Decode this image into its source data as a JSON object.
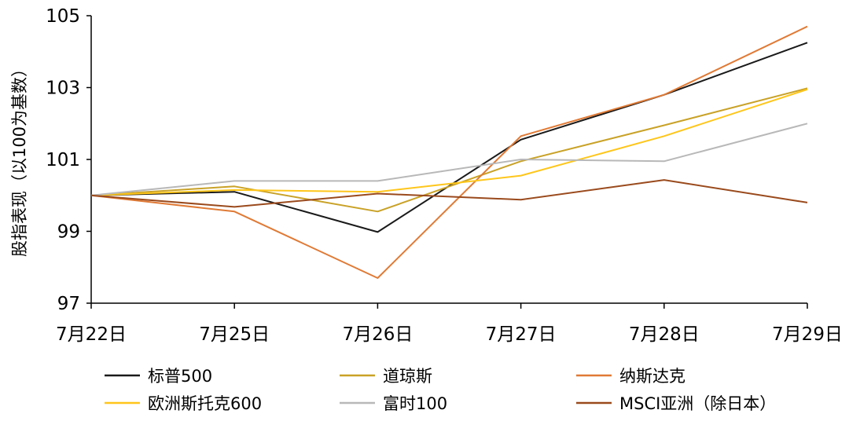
{
  "chart_data": {
    "type": "line",
    "ylabel": "股指表现（以100为基数）",
    "categories": [
      "7月22日",
      "7月25日",
      "7月26日",
      "7月27日",
      "7月28日",
      "7月29日"
    ],
    "ylim": [
      97,
      105
    ],
    "yticks": [
      97,
      99,
      101,
      103,
      105
    ],
    "grid": false,
    "legend_position": "bottom",
    "series": [
      {
        "name": "标普500",
        "color": "#1a1a1a",
        "values": [
          100,
          100.1,
          98.98,
          101.55,
          102.8,
          104.25
        ]
      },
      {
        "name": "道琼斯",
        "color": "#c9a227",
        "values": [
          100,
          100.25,
          99.55,
          100.95,
          101.95,
          102.98
        ]
      },
      {
        "name": "纳斯达克",
        "color": "#e07a35",
        "values": [
          100,
          99.55,
          97.7,
          101.65,
          102.8,
          104.7
        ]
      },
      {
        "name": "欧洲斯托克600",
        "color": "#ffc61a",
        "values": [
          100,
          100.15,
          100.1,
          100.55,
          101.65,
          102.95
        ]
      },
      {
        "name": "富时100",
        "color": "#b8b8b8",
        "values": [
          100,
          100.4,
          100.4,
          101,
          100.95,
          102
        ]
      },
      {
        "name": "MSCI亚洲（除日本）",
        "color": "#9a4a1c",
        "values": [
          100,
          99.68,
          100.05,
          99.88,
          100.43,
          99.8
        ]
      }
    ]
  }
}
